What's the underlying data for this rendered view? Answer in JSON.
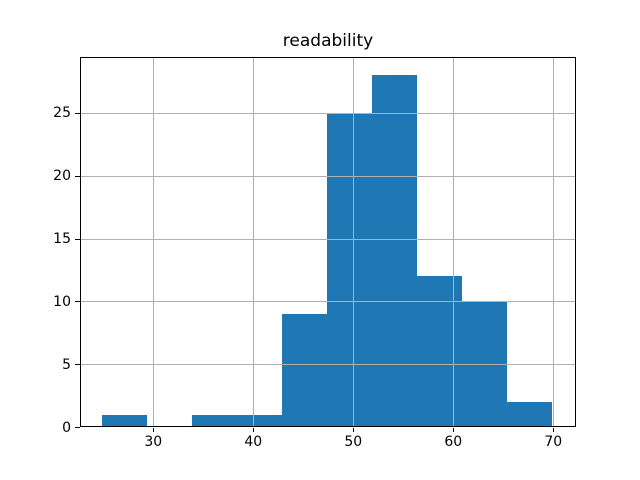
{
  "figure": {
    "background": "#ffffff"
  },
  "chart_data": {
    "type": "histogram",
    "title": "readability",
    "xlabel": "",
    "ylabel": "",
    "bin_edges": [
      24.9,
      29.4,
      33.9,
      38.4,
      42.9,
      47.4,
      51.9,
      56.4,
      60.9,
      65.4,
      69.9
    ],
    "counts": [
      1,
      0,
      1,
      1,
      9,
      25,
      28,
      12,
      10,
      2
    ],
    "xticks": [
      30,
      40,
      50,
      60,
      70
    ],
    "yticks": [
      0,
      5,
      10,
      15,
      20,
      25
    ],
    "xlim": [
      22.67,
      72.27
    ],
    "ylim": [
      0,
      29.4
    ],
    "grid": true,
    "legend": false,
    "colors": {
      "bar": "#1f77b4",
      "grid": "#b0b0b0",
      "spine": "#000000",
      "text": "#000000",
      "background": "#ffffff"
    }
  }
}
